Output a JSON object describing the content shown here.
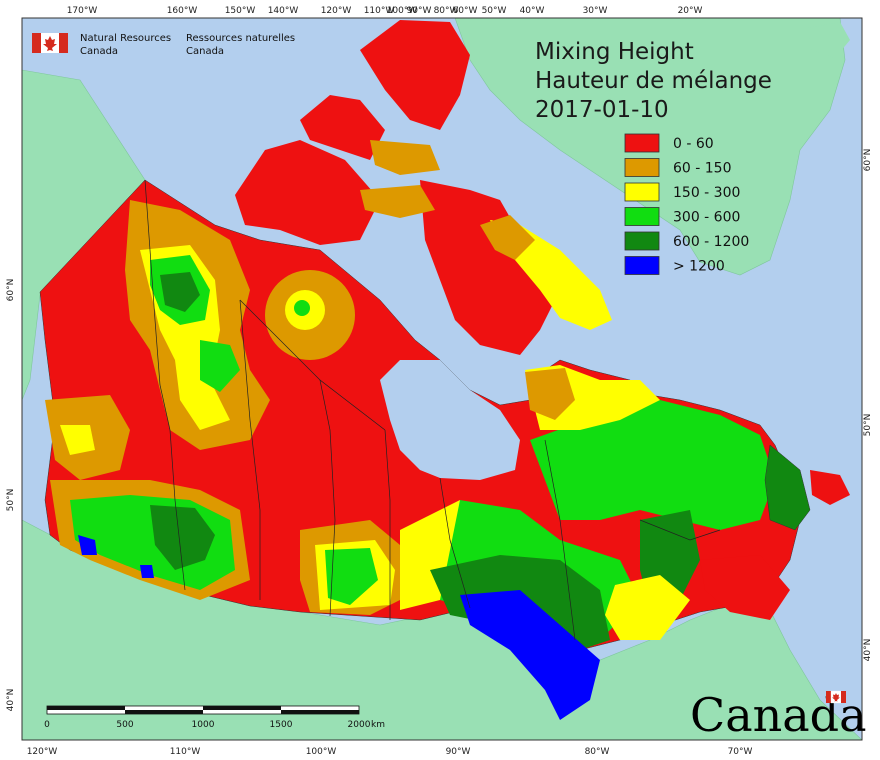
{
  "title": {
    "line1": "Mixing Height",
    "line2": "Hauteur de mélange",
    "date": "2017-01-10"
  },
  "agency": {
    "en_line1": "Natural Resources",
    "en_line2": "Canada",
    "fr_line1": "Ressources naturelles",
    "fr_line2": "Canada"
  },
  "legend": [
    {
      "label": "0 - 60",
      "color": "#ee1111"
    },
    {
      "label": "60 - 150",
      "color": "#dd9900"
    },
    {
      "label": "150 - 300",
      "color": "#ffff00"
    },
    {
      "label": "300 - 600",
      "color": "#11dd11"
    },
    {
      "label": "600 - 1200",
      "color": "#118811"
    },
    {
      "label": "> 1200",
      "color": "#0000ff"
    }
  ],
  "graticule": {
    "top": [
      "170°W",
      "160°W",
      "150°W",
      "140°W",
      "120°W",
      "110°W",
      "100°W",
      "90°W",
      "80°W",
      "60°W",
      "50°W",
      "40°W",
      "30°W",
      "20°W"
    ],
    "bottom": [
      "120°W",
      "110°W",
      "100°W",
      "90°W",
      "80°W",
      "70°W"
    ],
    "left": [
      "60°N",
      "50°N",
      "40°N"
    ],
    "right": [
      "60°N",
      "50°N",
      "40°N"
    ]
  },
  "scale_bar": {
    "labels": [
      "0",
      "500",
      "1000",
      "1500",
      "2000"
    ],
    "unit": "km"
  },
  "wordmark": "Canada",
  "colors": {
    "ocean": "#b3cfee",
    "foreign_land": "#99e0b4",
    "border": "#222222"
  }
}
